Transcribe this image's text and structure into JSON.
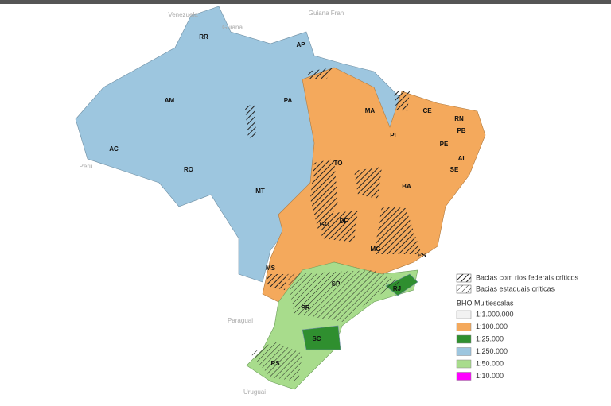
{
  "map": {
    "state_labels": [
      "RR",
      "AP",
      "AM",
      "PA",
      "MA",
      "CE",
      "RN",
      "PB",
      "PI",
      "PE",
      "AL",
      "SE",
      "AC",
      "RO",
      "TO",
      "BA",
      "MT",
      "GO",
      "DF",
      "MG",
      "ES",
      "MS",
      "SP",
      "RJ",
      "PR",
      "SC",
      "RS"
    ],
    "neighbor_labels": [
      "Venezuela",
      "Guiana",
      "Guiana Fran",
      "Peru",
      "Paraguai",
      "Uruguai"
    ]
  },
  "legend": {
    "hatch_items": [
      "Bacias com rios federais críticos",
      "Bacias estaduais críticas"
    ],
    "title": "BHO Multiescalas",
    "scale_items": [
      {
        "label": "1:1.000.000",
        "color": "#f2f2f2"
      },
      {
        "label": "1:100.000",
        "color": "#f4a95c"
      },
      {
        "label": "1:25.000",
        "color": "#2f8f2f"
      },
      {
        "label": "1:250.000",
        "color": "#9dc6df"
      },
      {
        "label": "1:50.000",
        "color": "#a8dc8c"
      },
      {
        "label": "1:10.000",
        "color": "#ff00ff"
      }
    ]
  }
}
